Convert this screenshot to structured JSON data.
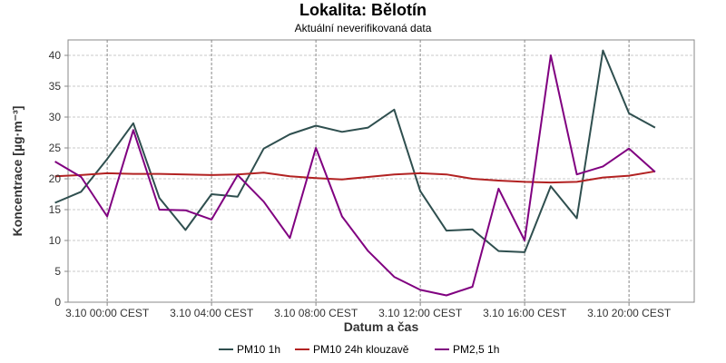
{
  "chart_data": {
    "type": "line",
    "title": "Lokalita: Bělotín",
    "subtitle": "Aktuální neverifikovaná data",
    "xlabel": "Datum a čas",
    "ylabel": "Koncentrace [µg·m⁻³]",
    "ylim": [
      0,
      42.5
    ],
    "yticks": [
      0,
      5,
      10,
      15,
      20,
      25,
      30,
      35,
      40
    ],
    "x_start_hour": 0,
    "x_end_hour": 23,
    "xlim_hours": [
      -1.5,
      22.5
    ],
    "xticks": [
      {
        "hour": 0,
        "label": "3.10 00:00 CEST"
      },
      {
        "hour": 4,
        "label": "3.10 04:00 CEST"
      },
      {
        "hour": 8,
        "label": "3.10 08:00 CEST"
      },
      {
        "hour": 12,
        "label": "3.10 12:00 CEST"
      },
      {
        "hour": 16,
        "label": "3.10 16:00 CEST"
      },
      {
        "hour": 20,
        "label": "3.10 20:00 CEST"
      }
    ],
    "grid": true,
    "legend_position": "bottom",
    "series": [
      {
        "name": "PM10 1h",
        "color": "#2f4f4f",
        "start_hour": -2,
        "values": [
          16.1,
          17.9,
          23.2,
          29.0,
          16.9,
          11.7,
          17.5,
          17.1,
          24.9,
          27.2,
          28.6,
          27.6,
          28.3,
          31.2,
          18.0,
          11.6,
          11.8,
          8.3,
          8.1,
          18.8,
          13.6,
          40.8,
          30.6,
          28.3
        ]
      },
      {
        "name": "PM10 24h klouzavě",
        "color": "#b22222",
        "start_hour": -2,
        "values": [
          20.4,
          20.6,
          20.9,
          20.8,
          20.8,
          20.7,
          20.6,
          20.7,
          21.0,
          20.4,
          20.1,
          19.9,
          20.3,
          20.7,
          20.9,
          20.7,
          20.0,
          19.7,
          19.5,
          19.4,
          19.5,
          20.2,
          20.5,
          21.2
        ]
      },
      {
        "name": "PM2,5 1h",
        "color": "#800080",
        "start_hour": -2,
        "values": [
          22.8,
          20.3,
          13.9,
          27.9,
          15.0,
          14.9,
          13.4,
          20.6,
          16.3,
          10.4,
          25.0,
          13.9,
          8.3,
          4.1,
          2.0,
          1.1,
          2.5,
          18.4,
          10.0,
          40.0,
          20.7,
          22.0,
          24.9,
          21.1
        ]
      }
    ]
  }
}
